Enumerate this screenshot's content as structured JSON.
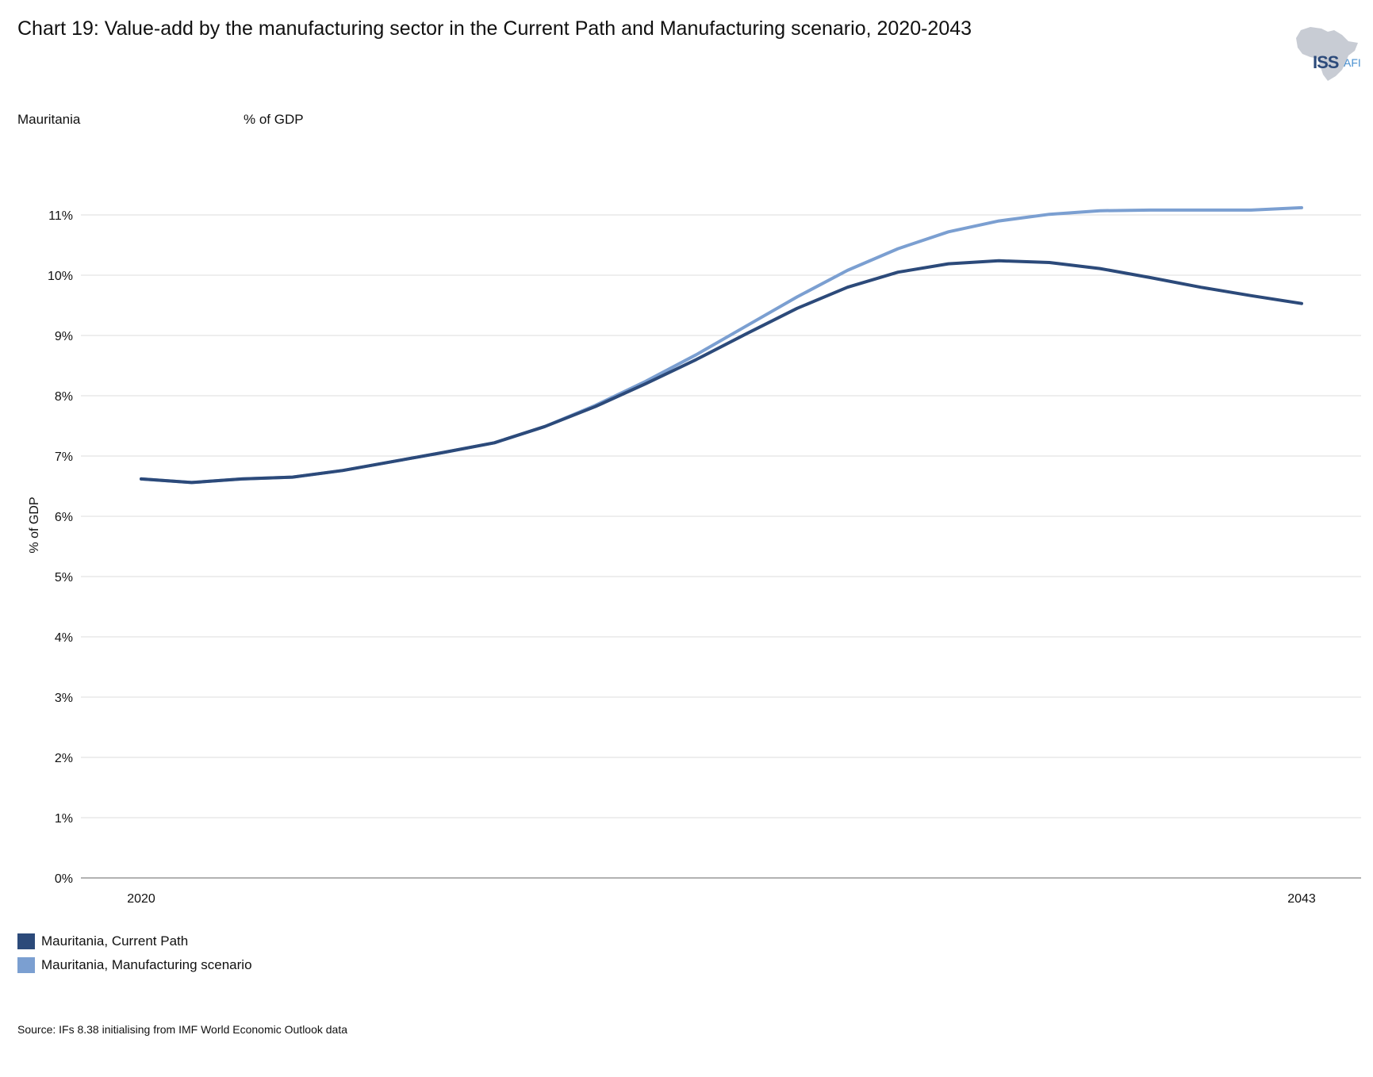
{
  "title": "Chart 19: Value-add by the manufacturing sector in the Current Path and Manufacturing scenario, 2020-2043",
  "logo": {
    "text_main": "ISS",
    "text_sub": "AFI"
  },
  "subhead_left": "Mauritania",
  "subhead_right": "% of GDP",
  "source": "Source: IFs 8.38 initialising from IMF World Economic Outlook data",
  "colors": {
    "grid": "#dedede",
    "axis": "#999999"
  },
  "chart_data": {
    "type": "line",
    "ylabel": "% of GDP",
    "ylim": [
      0,
      11
    ],
    "yticks": [
      {
        "value": 0,
        "label": "0%"
      },
      {
        "value": 1,
        "label": "1%"
      },
      {
        "value": 2,
        "label": "2%"
      },
      {
        "value": 3,
        "label": "3%"
      },
      {
        "value": 4,
        "label": "4%"
      },
      {
        "value": 5,
        "label": "5%"
      },
      {
        "value": 6,
        "label": "6%"
      },
      {
        "value": 7,
        "label": "7%"
      },
      {
        "value": 8,
        "label": "8%"
      },
      {
        "value": 9,
        "label": "9%"
      },
      {
        "value": 10,
        "label": "10%"
      },
      {
        "value": 11,
        "label": "11%"
      }
    ],
    "xlim": [
      2020,
      2043
    ],
    "xticks": [
      {
        "value": 2020,
        "label": "2020"
      },
      {
        "value": 2043,
        "label": "2043"
      }
    ],
    "grid": true,
    "x": [
      2020,
      2021,
      2022,
      2023,
      2024,
      2025,
      2026,
      2027,
      2028,
      2029,
      2030,
      2031,
      2032,
      2033,
      2034,
      2035,
      2036,
      2037,
      2038,
      2039,
      2040,
      2041,
      2042,
      2043
    ],
    "series": [
      {
        "name": "Mauritania, Current Path",
        "color": "#2c4a7a",
        "values": [
          6.62,
          6.56,
          6.62,
          6.65,
          6.76,
          6.91,
          7.06,
          7.22,
          7.49,
          7.82,
          8.2,
          8.6,
          9.03,
          9.45,
          9.8,
          10.05,
          10.19,
          10.24,
          10.21,
          10.11,
          9.96,
          9.8,
          9.66,
          9.53
        ]
      },
      {
        "name": "Mauritania, Manufacturing scenario",
        "color": "#7b9fd1",
        "values": [
          6.62,
          6.56,
          6.62,
          6.65,
          6.76,
          6.91,
          7.06,
          7.22,
          7.49,
          7.84,
          8.24,
          8.68,
          9.16,
          9.64,
          10.08,
          10.44,
          10.72,
          10.9,
          11.01,
          11.07,
          11.08,
          11.08,
          11.08,
          11.12
        ]
      }
    ],
    "legend_position": "bottom-left"
  }
}
